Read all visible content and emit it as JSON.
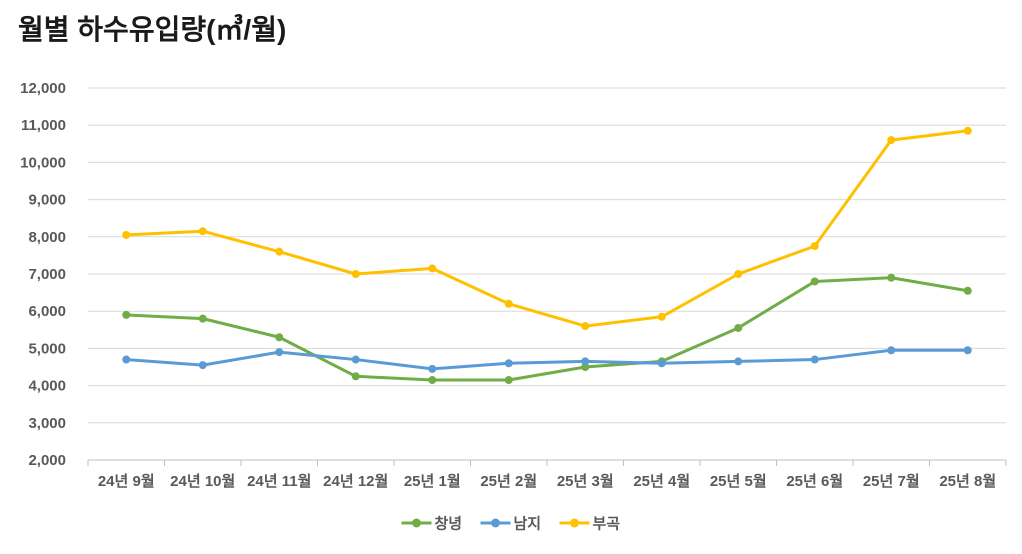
{
  "title": "월별 하수유입량(㎥/월)",
  "chart_data": {
    "type": "line",
    "title": "월별 하수유입량(㎥/월)",
    "categories": [
      "24년 9월",
      "24년 10월",
      "24년 11월",
      "24년 12월",
      "25년 1월",
      "25년 2월",
      "25년 3월",
      "25년 4월",
      "25년 5월",
      "25년 6월",
      "25년 7월",
      "25년 8월"
    ],
    "series": [
      {
        "name": "창녕",
        "slug": "changnyeong",
        "color": "#70AD47",
        "values": [
          5900,
          5800,
          5300,
          4250,
          4150,
          4150,
          4500,
          4650,
          5550,
          6800,
          6900,
          6550
        ]
      },
      {
        "name": "남지",
        "slug": "namji",
        "color": "#5B9BD5",
        "values": [
          4700,
          4550,
          4900,
          4700,
          4450,
          4600,
          4650,
          4600,
          4650,
          4700,
          4950,
          4950
        ]
      },
      {
        "name": "부곡",
        "slug": "bugok",
        "color": "#FFC000",
        "values": [
          8050,
          8150,
          7600,
          7000,
          7150,
          6200,
          5600,
          5850,
          7000,
          7750,
          10600,
          10850
        ]
      }
    ],
    "ylim": [
      2000,
      12000
    ],
    "ytick_step": 1000,
    "xlabel": "",
    "ylabel": "",
    "grid": "horizontal",
    "legend_position": "bottom",
    "marker": "circle"
  },
  "style_colors": {
    "gridline": "#D9D9D9",
    "axis_line": "#BFBFBF",
    "tick_text": "#595959",
    "title_text": "#1a1a1a",
    "background": "#FFFFFF"
  }
}
